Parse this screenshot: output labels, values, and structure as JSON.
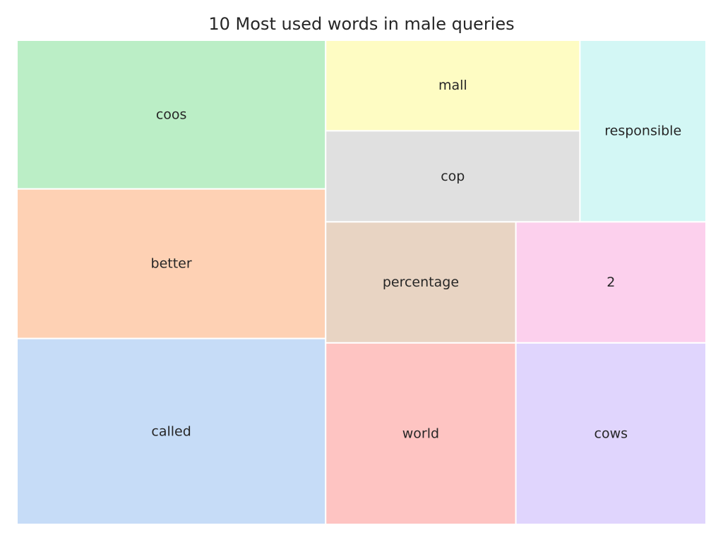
{
  "chart_data": {
    "type": "treemap",
    "title": "10 Most used words in male queries",
    "xlim": [
      0,
      100
    ],
    "ylim": [
      0,
      100
    ],
    "grid": false,
    "tiles": [
      {
        "label": "called",
        "x": 0,
        "y": 0,
        "dx": 44.8,
        "dy": 38.4,
        "color": "#c6dcf7"
      },
      {
        "label": "better",
        "x": 0,
        "y": 38.4,
        "dx": 44.8,
        "dy": 30.9,
        "color": "#fed1b4"
      },
      {
        "label": "coos",
        "x": 0,
        "y": 69.3,
        "dx": 44.8,
        "dy": 30.7,
        "color": "#bbeec6"
      },
      {
        "label": "world",
        "x": 44.8,
        "y": 0,
        "dx": 27.6,
        "dy": 37.5,
        "color": "#fec4c2"
      },
      {
        "label": "cows",
        "x": 72.4,
        "y": 0,
        "dx": 27.6,
        "dy": 37.5,
        "color": "#e0d5fd"
      },
      {
        "label": "percentage",
        "x": 44.8,
        "y": 37.5,
        "dx": 27.6,
        "dy": 25.0,
        "color": "#e8d4c3"
      },
      {
        "label": "2",
        "x": 72.4,
        "y": 37.5,
        "dx": 27.6,
        "dy": 25.0,
        "color": "#fcd0ed"
      },
      {
        "label": "cop",
        "x": 44.8,
        "y": 62.5,
        "dx": 36.9,
        "dy": 18.8,
        "color": "#e0e0e0"
      },
      {
        "label": "mall",
        "x": 44.8,
        "y": 81.3,
        "dx": 36.9,
        "dy": 18.7,
        "color": "#fefcc3"
      },
      {
        "label": "responsible",
        "x": 81.7,
        "y": 62.5,
        "dx": 18.3,
        "dy": 37.5,
        "color": "#d3f7f5"
      }
    ]
  }
}
